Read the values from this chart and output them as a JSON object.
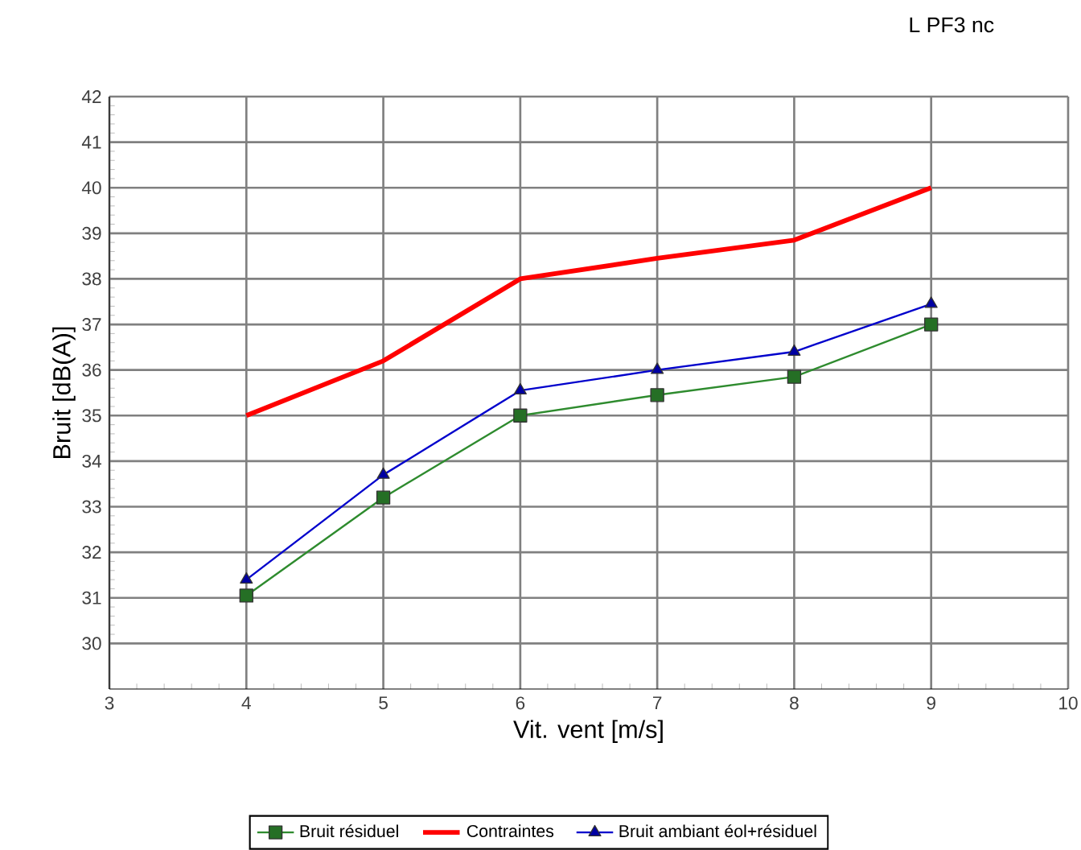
{
  "chart_data": {
    "type": "line",
    "title": "L PF3 nc",
    "xlabel": "Vit. vent [m/s]",
    "ylabel": "Bruit [dB(A)]",
    "x": [
      4,
      5,
      6,
      7,
      8,
      9
    ],
    "series": [
      {
        "name": "Bruit résiduel",
        "color": "#2e8b2e",
        "marker": "square",
        "values": [
          31.05,
          33.2,
          35.0,
          35.45,
          35.85,
          37.0
        ]
      },
      {
        "name": "Contraintes",
        "color": "#ff0000",
        "marker": "none",
        "values": [
          35.0,
          36.2,
          38.0,
          38.45,
          38.85,
          40.0
        ]
      },
      {
        "name": "Bruit ambiant éol+résiduel",
        "color": "#0000cc",
        "marker": "triangle",
        "values": [
          31.4,
          33.7,
          35.55,
          36.0,
          36.4,
          37.45
        ]
      }
    ],
    "xlim": [
      3,
      10
    ],
    "xticks": [
      3,
      4,
      5,
      6,
      7,
      8,
      9,
      10
    ],
    "ylim": [
      29,
      42
    ],
    "yticks": [
      30,
      31,
      32,
      33,
      34,
      35,
      36,
      37,
      38,
      39,
      40,
      41,
      42
    ],
    "grid": true,
    "legend": "bottom"
  }
}
